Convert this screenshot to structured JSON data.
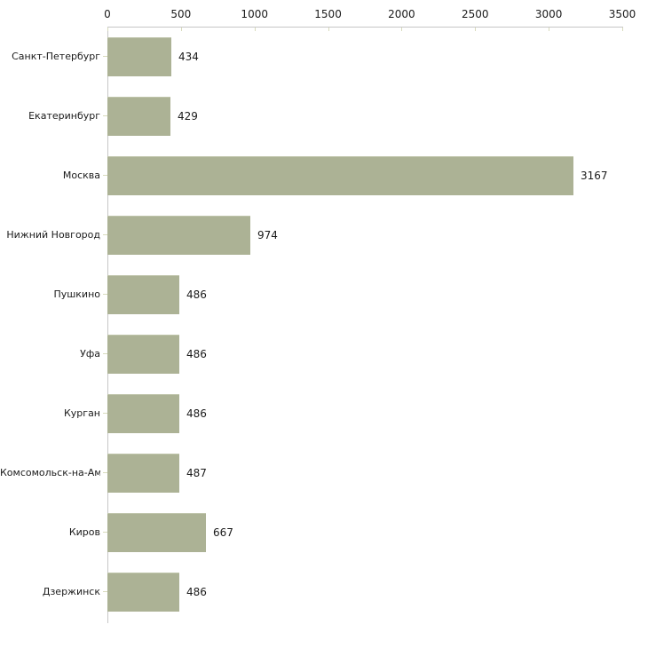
{
  "chart_data": {
    "type": "bar",
    "orientation": "horizontal",
    "title": "",
    "xlabel": "",
    "ylabel": "",
    "legend": "none",
    "grid": "off",
    "categories": [
      "Санкт-Петербург",
      "Екатеринбург",
      "Москва",
      "Нижний Новгород",
      "Пушкино",
      "Уфа",
      "Курган",
      "Комсомольск-на-Амуре",
      "Киров",
      "Дзержинск"
    ],
    "values": [
      434,
      429,
      3167,
      974,
      486,
      486,
      486,
      487,
      667,
      486
    ],
    "value_labels": [
      "434",
      "429",
      "3167",
      "974",
      "486",
      "486",
      "486",
      "487",
      "667",
      "486"
    ],
    "x_ticks": [
      0,
      500,
      1000,
      1500,
      2000,
      2500,
      3000,
      3500
    ],
    "x_tick_labels": [
      "0",
      "500",
      "1000",
      "1500",
      "2000",
      "2500",
      "3000",
      "3500"
    ],
    "xlim": [
      0,
      3500
    ],
    "colors": {
      "bar": "#acb295",
      "bar_edge": "#bfc4aa",
      "axis_line": "#c6c6c6",
      "tick_mark": "#d8dbbd",
      "text": "#1a1a1a",
      "background": "#ffffff"
    }
  }
}
